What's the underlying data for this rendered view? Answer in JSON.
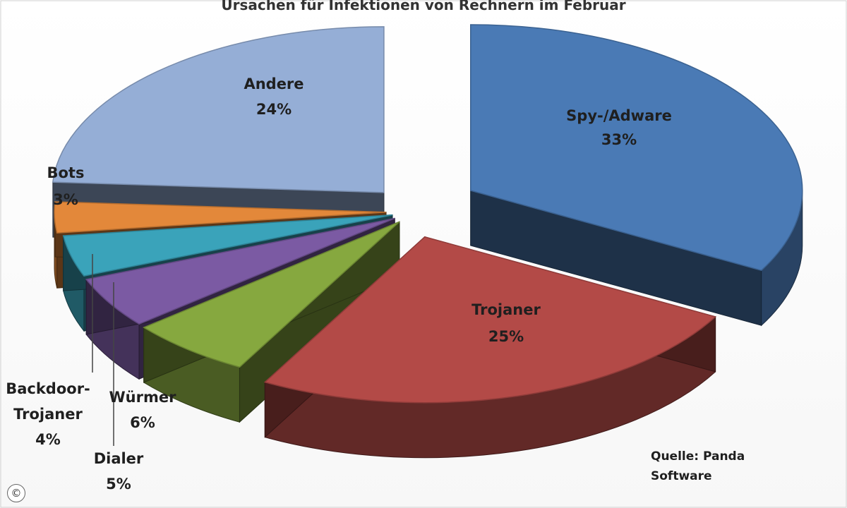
{
  "chart_data": {
    "type": "pie",
    "title": "Ursachen für Infektionen von Rechnern im Februar",
    "slices": [
      {
        "name": "Spy-/Adware",
        "value": 33,
        "label": "33%",
        "color": "#4a7ab5"
      },
      {
        "name": "Trojaner",
        "value": 25,
        "label": "25%",
        "color": "#b34a47"
      },
      {
        "name": "Würmer",
        "value": 6,
        "label": "6%",
        "color": "#86a83f"
      },
      {
        "name": "Dialer",
        "value": 5,
        "label": "5%",
        "color": "#7b5aa3"
      },
      {
        "name": "Backdoor-Trojaner",
        "value": 4,
        "label": "4%",
        "color": "#3aa3ba"
      },
      {
        "name": "Bots",
        "value": 3,
        "label": "3%",
        "color": "#e3883a"
      },
      {
        "name": "Andere",
        "value": 24,
        "label": "24%",
        "color": "#95aed6"
      }
    ],
    "name_labels": {
      "backdoor_line1": "Backdoor-",
      "backdoor_line2": "Trojaner"
    },
    "source": {
      "line1": "Quelle: Panda",
      "line2": "Software"
    }
  },
  "copyright_symbol": "©"
}
